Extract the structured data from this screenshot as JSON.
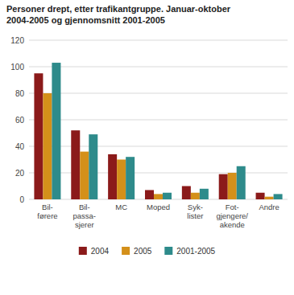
{
  "chart_data": {
    "type": "bar",
    "title": "Personer drept, etter trafikantgruppe. Januar-oktober\n2004-2005 og gjennomsnitt 2001-2005",
    "categories": [
      "Bil-\nførere",
      "Bil-\npassa-\nsjerer",
      "MC",
      "Moped",
      "Syk-\nlister",
      "Fot-\ngjengere/\nakende",
      "Andre"
    ],
    "series": [
      {
        "name": "2004",
        "color": "#8B1A1A",
        "values": [
          95,
          52,
          34,
          7,
          10,
          19,
          5
        ]
      },
      {
        "name": "2005",
        "color": "#D4901A",
        "values": [
          80,
          36,
          30,
          4,
          5,
          20,
          2
        ]
      },
      {
        "name": "2001-2005",
        "color": "#2E8B8B",
        "values": [
          103,
          49,
          32,
          5,
          8,
          25,
          4
        ]
      }
    ],
    "ylim": [
      0,
      120
    ],
    "yticks": [
      0,
      20,
      40,
      60,
      80,
      100,
      120
    ],
    "grid": true,
    "legend": "bottom"
  }
}
